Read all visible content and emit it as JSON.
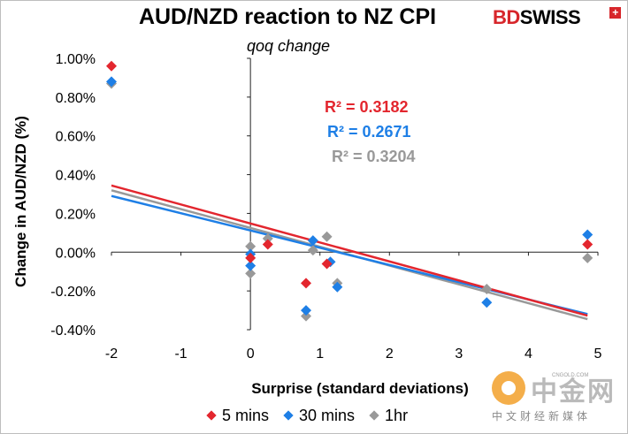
{
  "header": {
    "title": "AUD/NZD reaction to NZ CPI",
    "subtitle": "qoq change"
  },
  "brand": {
    "bd": "BD",
    "swiss": "SWISS",
    "plus": "+"
  },
  "watermark": {
    "brand_cn": "中金网",
    "domain": "CNGOLD.COM",
    "tagline": "中文财经新媒体"
  },
  "colors": {
    "series_5min": "#e3262e",
    "series_30min": "#1e7fe6",
    "series_1hr": "#999999"
  },
  "chart_data": {
    "type": "scatter",
    "title": "AUD/NZD reaction to NZ CPI",
    "subtitle": "qoq change",
    "xlabel": "Surprise (standard deviations)",
    "ylabel": "Change in AUD/NZD (%)",
    "xlim": [
      -2,
      5
    ],
    "ylim": [
      -0.004,
      0.01
    ],
    "x_ticks": [
      -2,
      -1,
      0,
      1,
      2,
      3,
      4,
      5
    ],
    "x_tick_labels": [
      "-2",
      "-1",
      "0",
      "1",
      "2",
      "3",
      "4",
      "5"
    ],
    "y_ticks": [
      -0.004,
      -0.002,
      0,
      0.002,
      0.004,
      0.006,
      0.008,
      0.01
    ],
    "y_tick_labels": [
      "-0.40%",
      "-0.20%",
      "0.00%",
      "0.20%",
      "0.40%",
      "0.60%",
      "0.80%",
      "1.00%"
    ],
    "legend_position": "bottom",
    "series": [
      {
        "name": "5 mins",
        "color": "#e3262e",
        "x": [
          -2.0,
          0.0,
          0.25,
          0.8,
          1.1,
          4.85
        ],
        "y": [
          0.0096,
          -0.0003,
          0.0004,
          -0.0016,
          -0.0006,
          0.0004
        ],
        "trendline": {
          "slope": -0.00098,
          "intercept": 0.00148,
          "x_range": [
            -2.0,
            4.85
          ],
          "r2_label": "R² = 0.3182"
        }
      },
      {
        "name": "30 mins",
        "color": "#1e7fe6",
        "x": [
          -2.0,
          0.0,
          0.0,
          0.8,
          0.9,
          1.15,
          1.25,
          3.4,
          4.85
        ],
        "y": [
          0.0088,
          -0.0001,
          -0.0007,
          -0.003,
          0.0006,
          -0.0005,
          -0.0018,
          -0.0026,
          0.0009
        ],
        "trendline": {
          "slope": -0.00089,
          "intercept": 0.00112,
          "x_range": [
            -2.0,
            4.85
          ],
          "r2_label": "R² = 0.2671"
        }
      },
      {
        "name": "1hr",
        "color": "#999999",
        "x": [
          -2.0,
          0.0,
          0.0,
          0.25,
          0.8,
          0.9,
          1.1,
          1.25,
          3.4,
          4.85
        ],
        "y": [
          0.0087,
          0.0003,
          -0.0011,
          0.0007,
          -0.0033,
          0.0001,
          0.0008,
          -0.0016,
          -0.0019,
          -0.0003
        ],
        "trendline": {
          "slope": -0.00097,
          "intercept": 0.00125,
          "x_range": [
            -2.0,
            4.85
          ],
          "r2_label": "R² = 0.3204"
        }
      }
    ]
  }
}
